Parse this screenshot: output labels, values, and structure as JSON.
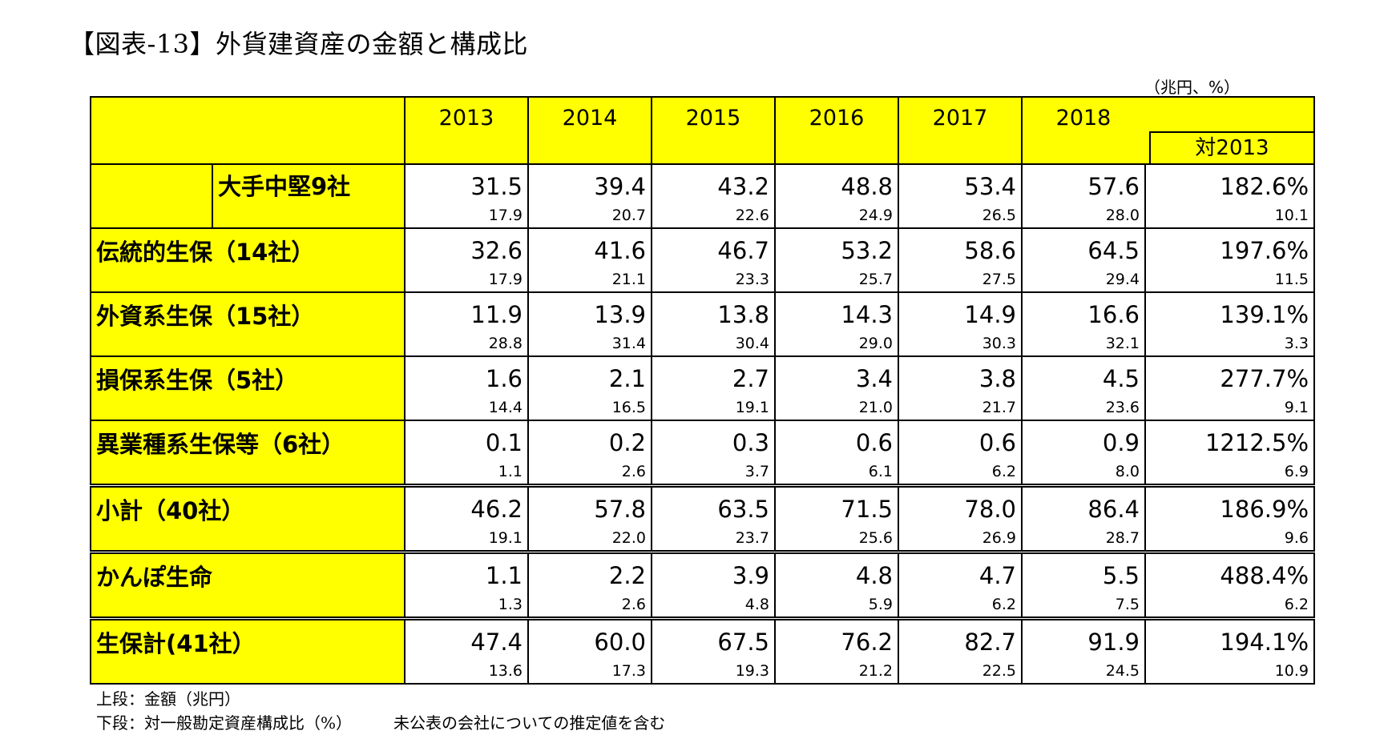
{
  "title": "【図表-13】外貨建資産の金額と構成比",
  "units": "（兆円、%）",
  "headers": {
    "years": [
      "2013",
      "2014",
      "2015",
      "2016",
      "2017",
      "2018"
    ],
    "ratio_header": "対2013"
  },
  "rows": [
    {
      "label": "大手中堅9社",
      "top": [
        "31.5",
        "39.4",
        "43.2",
        "48.8",
        "53.4",
        "57.6",
        "182.6%"
      ],
      "bottom": [
        "17.9",
        "20.7",
        "22.6",
        "24.9",
        "26.5",
        "28.0",
        "10.1"
      ]
    },
    {
      "label": "伝統的生保（14社）",
      "top": [
        "32.6",
        "41.6",
        "46.7",
        "53.2",
        "58.6",
        "64.5",
        "197.6%"
      ],
      "bottom": [
        "17.9",
        "21.1",
        "23.3",
        "25.7",
        "27.5",
        "29.4",
        "11.5"
      ]
    },
    {
      "label": "外資系生保（15社）",
      "top": [
        "11.9",
        "13.9",
        "13.8",
        "14.3",
        "14.9",
        "16.6",
        "139.1%"
      ],
      "bottom": [
        "28.8",
        "31.4",
        "30.4",
        "29.0",
        "30.3",
        "32.1",
        "3.3"
      ]
    },
    {
      "label": "損保系生保（5社）",
      "top": [
        "1.6",
        "2.1",
        "2.7",
        "3.4",
        "3.8",
        "4.5",
        "277.7%"
      ],
      "bottom": [
        "14.4",
        "16.5",
        "19.1",
        "21.0",
        "21.7",
        "23.6",
        "9.1"
      ]
    },
    {
      "label": "異業種系生保等（6社）",
      "top": [
        "0.1",
        "0.2",
        "0.3",
        "0.6",
        "0.6",
        "0.9",
        "1212.5%"
      ],
      "bottom": [
        "1.1",
        "2.6",
        "3.7",
        "6.1",
        "6.2",
        "8.0",
        "6.9"
      ]
    },
    {
      "label": "小計（40社）",
      "top": [
        "46.2",
        "57.8",
        "63.5",
        "71.5",
        "78.0",
        "86.4",
        "186.9%"
      ],
      "bottom": [
        "19.1",
        "22.0",
        "23.7",
        "25.6",
        "26.9",
        "28.7",
        "9.6"
      ]
    },
    {
      "label": "かんぽ生命",
      "top": [
        "1.1",
        "2.2",
        "3.9",
        "4.8",
        "4.7",
        "5.5",
        "488.4%"
      ],
      "bottom": [
        "1.3",
        "2.6",
        "4.8",
        "5.9",
        "6.2",
        "7.5",
        "6.2"
      ]
    },
    {
      "label": "生保計(41社）",
      "top": [
        "47.4",
        "60.0",
        "67.5",
        "76.2",
        "82.7",
        "91.9",
        "194.1%"
      ],
      "bottom": [
        "13.6",
        "17.3",
        "19.3",
        "21.2",
        "22.5",
        "24.5",
        "10.9"
      ]
    }
  ],
  "notes": {
    "line1": "上段：金額（兆円）",
    "line2": "下段：対一般勘定資産構成比（%）",
    "line2_extra": "未公表の会社についての推定値を含む"
  }
}
